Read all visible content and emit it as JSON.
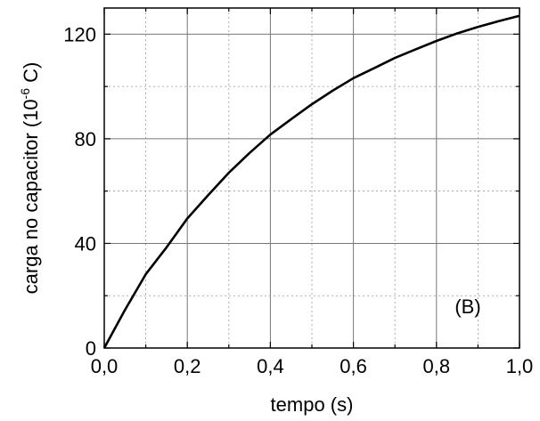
{
  "chart_data": {
    "type": "line",
    "xlabel": "tempo (s)",
    "ylabel": {
      "prefix": "carga no capacitor (10",
      "exponent": "-6",
      "suffix": " C)"
    },
    "xlim": [
      0,
      1.0
    ],
    "ylim": [
      0,
      130
    ],
    "xticks": [
      {
        "value": 0.0,
        "label": "0,0"
      },
      {
        "value": 0.2,
        "label": "0,2"
      },
      {
        "value": 0.4,
        "label": "0,4"
      },
      {
        "value": 0.6,
        "label": "0,6"
      },
      {
        "value": 0.8,
        "label": "0,8"
      },
      {
        "value": 1.0,
        "label": "1,0"
      }
    ],
    "yticks": [
      {
        "value": 0,
        "label": "0"
      },
      {
        "value": 40,
        "label": "40"
      },
      {
        "value": 80,
        "label": "80"
      },
      {
        "value": 120,
        "label": "120"
      }
    ],
    "x_minor_step": 0.1,
    "y_minor_step": 20,
    "grid": true,
    "annotation": "(B)",
    "series": [
      {
        "color": "#000000",
        "x": [
          0,
          0.05,
          0.1,
          0.15,
          0.2,
          0.25,
          0.3,
          0.35,
          0.4,
          0.45,
          0.5,
          0.55,
          0.6,
          0.65,
          0.7,
          0.75,
          0.8,
          0.85,
          0.9,
          0.95,
          1.0
        ],
        "y": [
          0,
          14.6,
          28.2,
          38.5,
          49.5,
          58.4,
          67.0,
          74.6,
          81.6,
          87.5,
          93.2,
          98.4,
          103.2,
          107.0,
          110.9,
          114.2,
          117.4,
          120.3,
          122.8,
          125.0,
          127.0
        ]
      }
    ]
  }
}
